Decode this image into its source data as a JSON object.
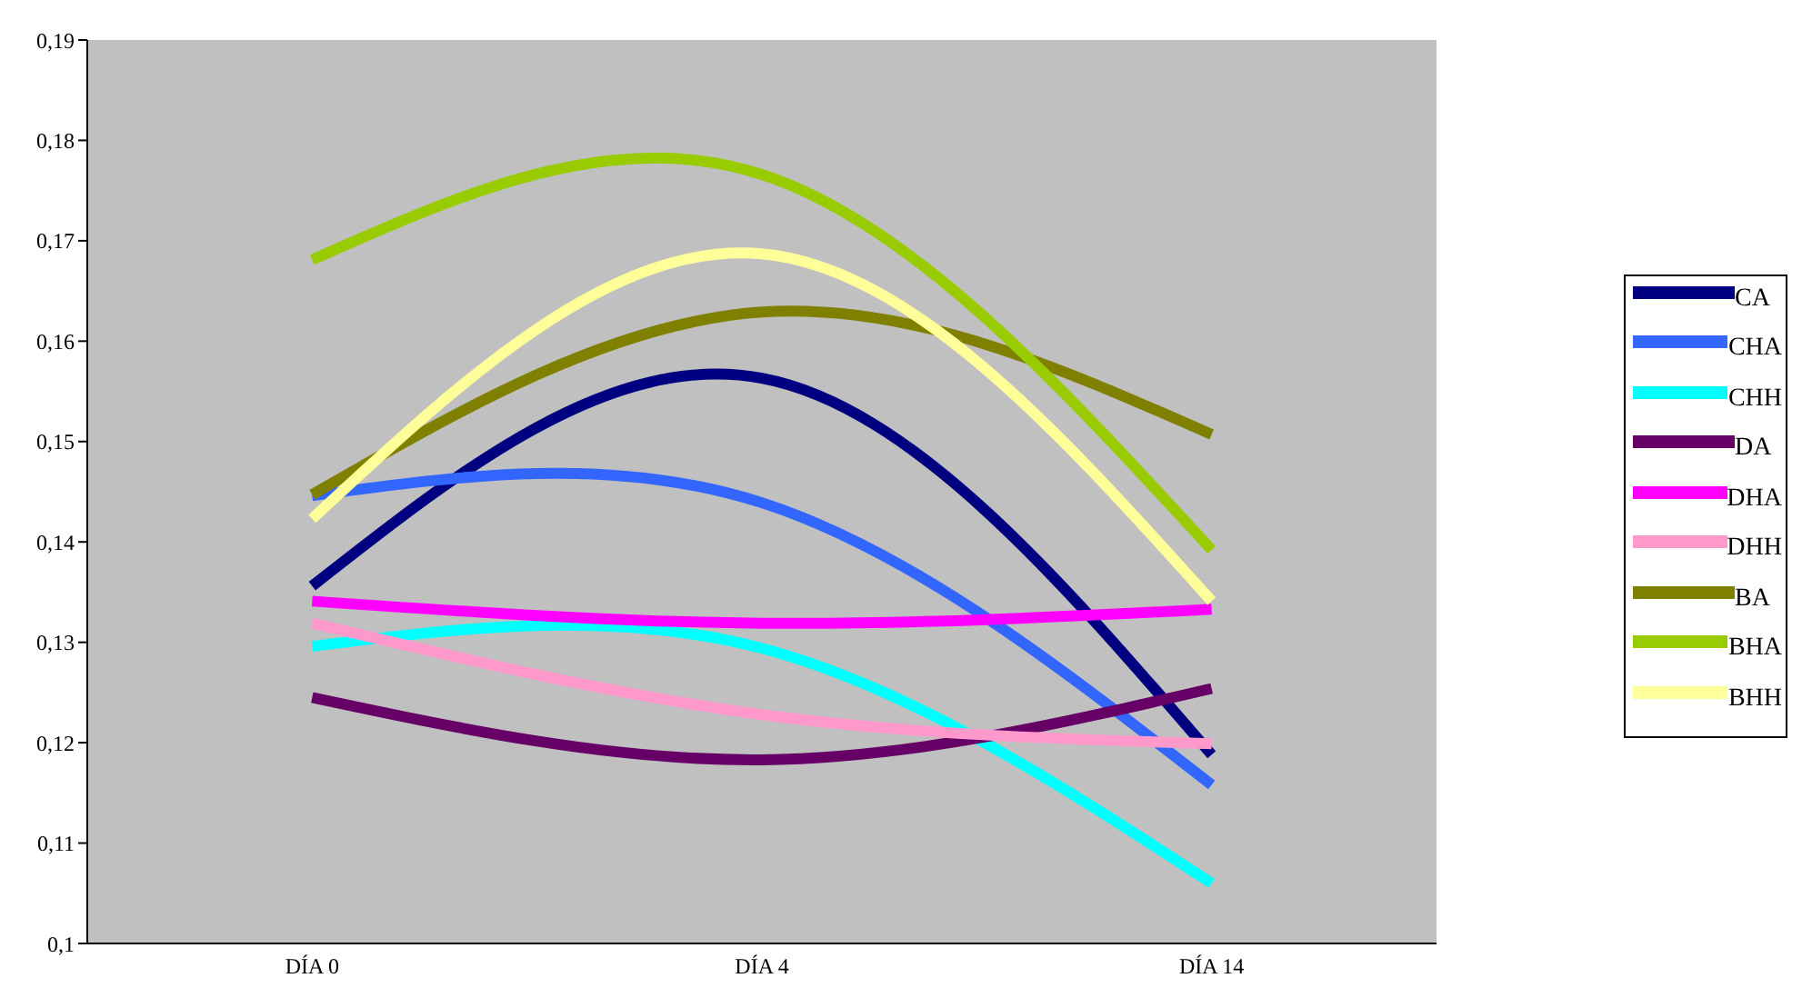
{
  "chart_data": {
    "type": "line",
    "categories": [
      "DÍA 0",
      "DÍA 4",
      "DÍA 14"
    ],
    "ylim": [
      0.1,
      0.19
    ],
    "yticks": [
      {
        "value": 0.1,
        "label": "0,1"
      },
      {
        "value": 0.11,
        "label": "0,11"
      },
      {
        "value": 0.12,
        "label": "0,12"
      },
      {
        "value": 0.13,
        "label": "0,13"
      },
      {
        "value": 0.14,
        "label": "0,14"
      },
      {
        "value": 0.15,
        "label": "0,15"
      },
      {
        "value": 0.16,
        "label": "0,16"
      },
      {
        "value": 0.17,
        "label": "0,17"
      },
      {
        "value": 0.18,
        "label": "0,18"
      },
      {
        "value": 0.19,
        "label": "0,19"
      }
    ],
    "grid": false,
    "legend": "right",
    "marker": "none",
    "line_style": "solid",
    "series": [
      {
        "name": "CA",
        "color": "#000080",
        "values": [
          0.1356,
          0.1563,
          0.1188
        ]
      },
      {
        "name": "CHA",
        "color": "#3366ff",
        "values": [
          0.1446,
          0.1439,
          0.1158
        ]
      },
      {
        "name": "CHH",
        "color": "#00ffff",
        "values": [
          0.1296,
          0.1294,
          0.106
        ]
      },
      {
        "name": "DA",
        "color": "#660066",
        "values": [
          0.1245,
          0.1183,
          0.1254
        ]
      },
      {
        "name": "DHA",
        "color": "#ff00ff",
        "values": [
          0.1341,
          0.1319,
          0.1333
        ]
      },
      {
        "name": "DHH",
        "color": "#ff99cc",
        "values": [
          0.1319,
          0.1228,
          0.1199
        ]
      },
      {
        "name": "BA",
        "color": "#808000",
        "values": [
          0.1447,
          0.1629,
          0.1507
        ]
      },
      {
        "name": "BHA",
        "color": "#99cc00",
        "values": [
          0.1681,
          0.1766,
          0.1392
        ]
      },
      {
        "name": "BHH",
        "color": "#ffff99",
        "values": [
          0.1423,
          0.1687,
          0.1341
        ]
      }
    ]
  }
}
